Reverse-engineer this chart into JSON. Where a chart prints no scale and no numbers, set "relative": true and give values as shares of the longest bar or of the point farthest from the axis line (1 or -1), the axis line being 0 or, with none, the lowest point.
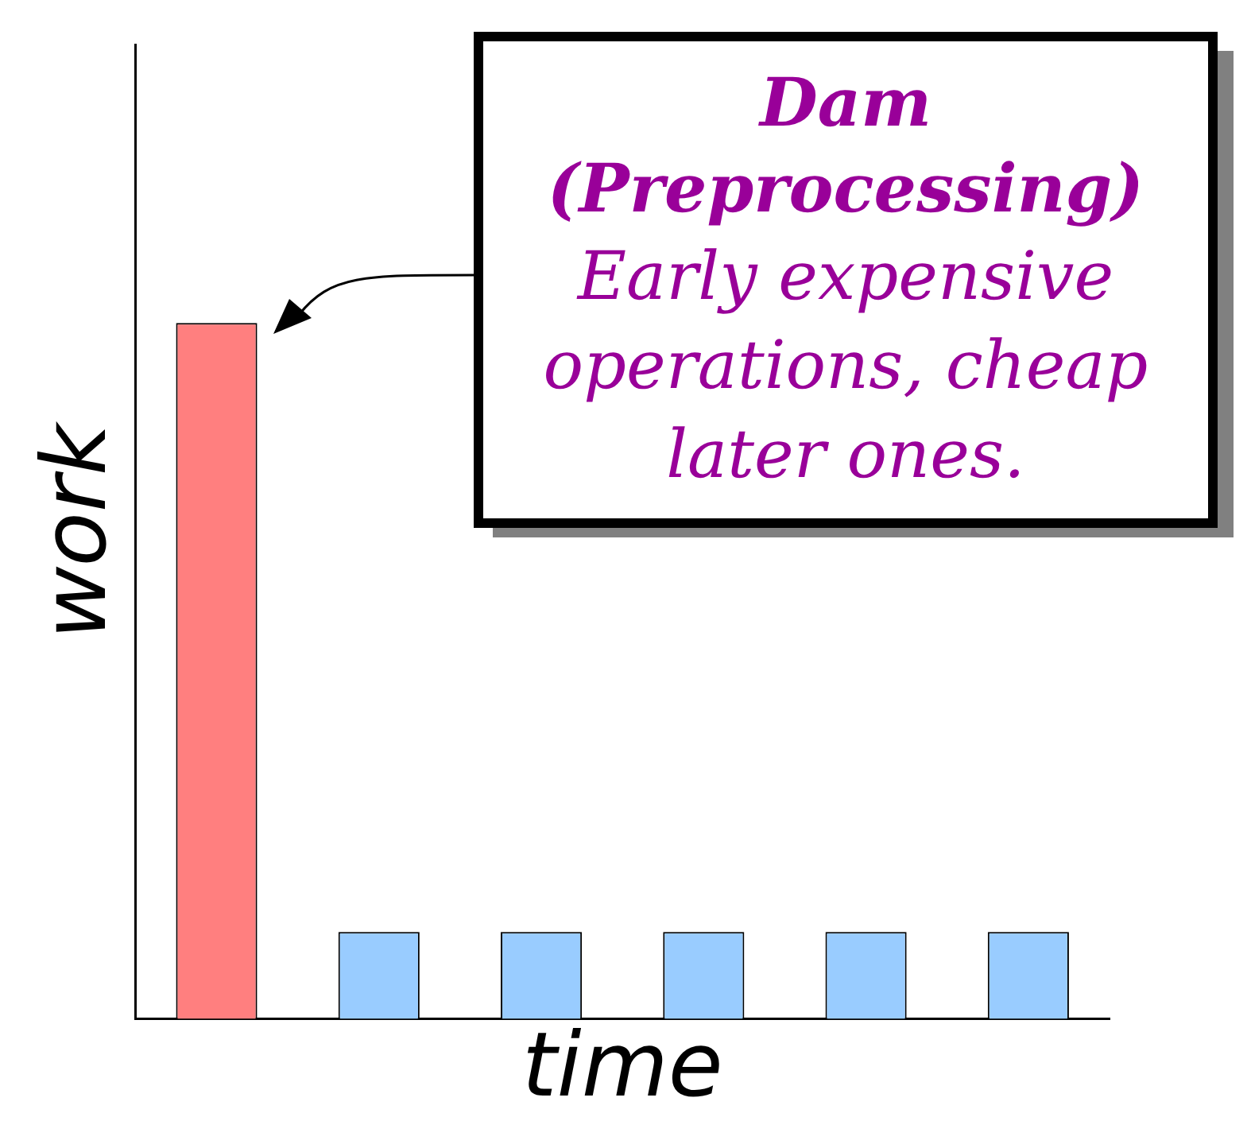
{
  "chart_data": {
    "type": "bar",
    "title": "Dam (Preprocessing)",
    "xlabel": "time",
    "ylabel": "work",
    "annotations": [
      "Early expensive operations, cheap later ones."
    ],
    "categories": [
      null,
      null,
      null,
      null,
      null,
      null
    ],
    "values": [
      1,
      0.125,
      0.125,
      0.125,
      0.125,
      0.125
    ],
    "colors": [
      "#ff7f7f",
      "#99ccff",
      "#99ccff",
      "#99ccff",
      "#99ccff",
      "#99ccff"
    ],
    "relative": true,
    "grid": false,
    "legend": false
  }
}
